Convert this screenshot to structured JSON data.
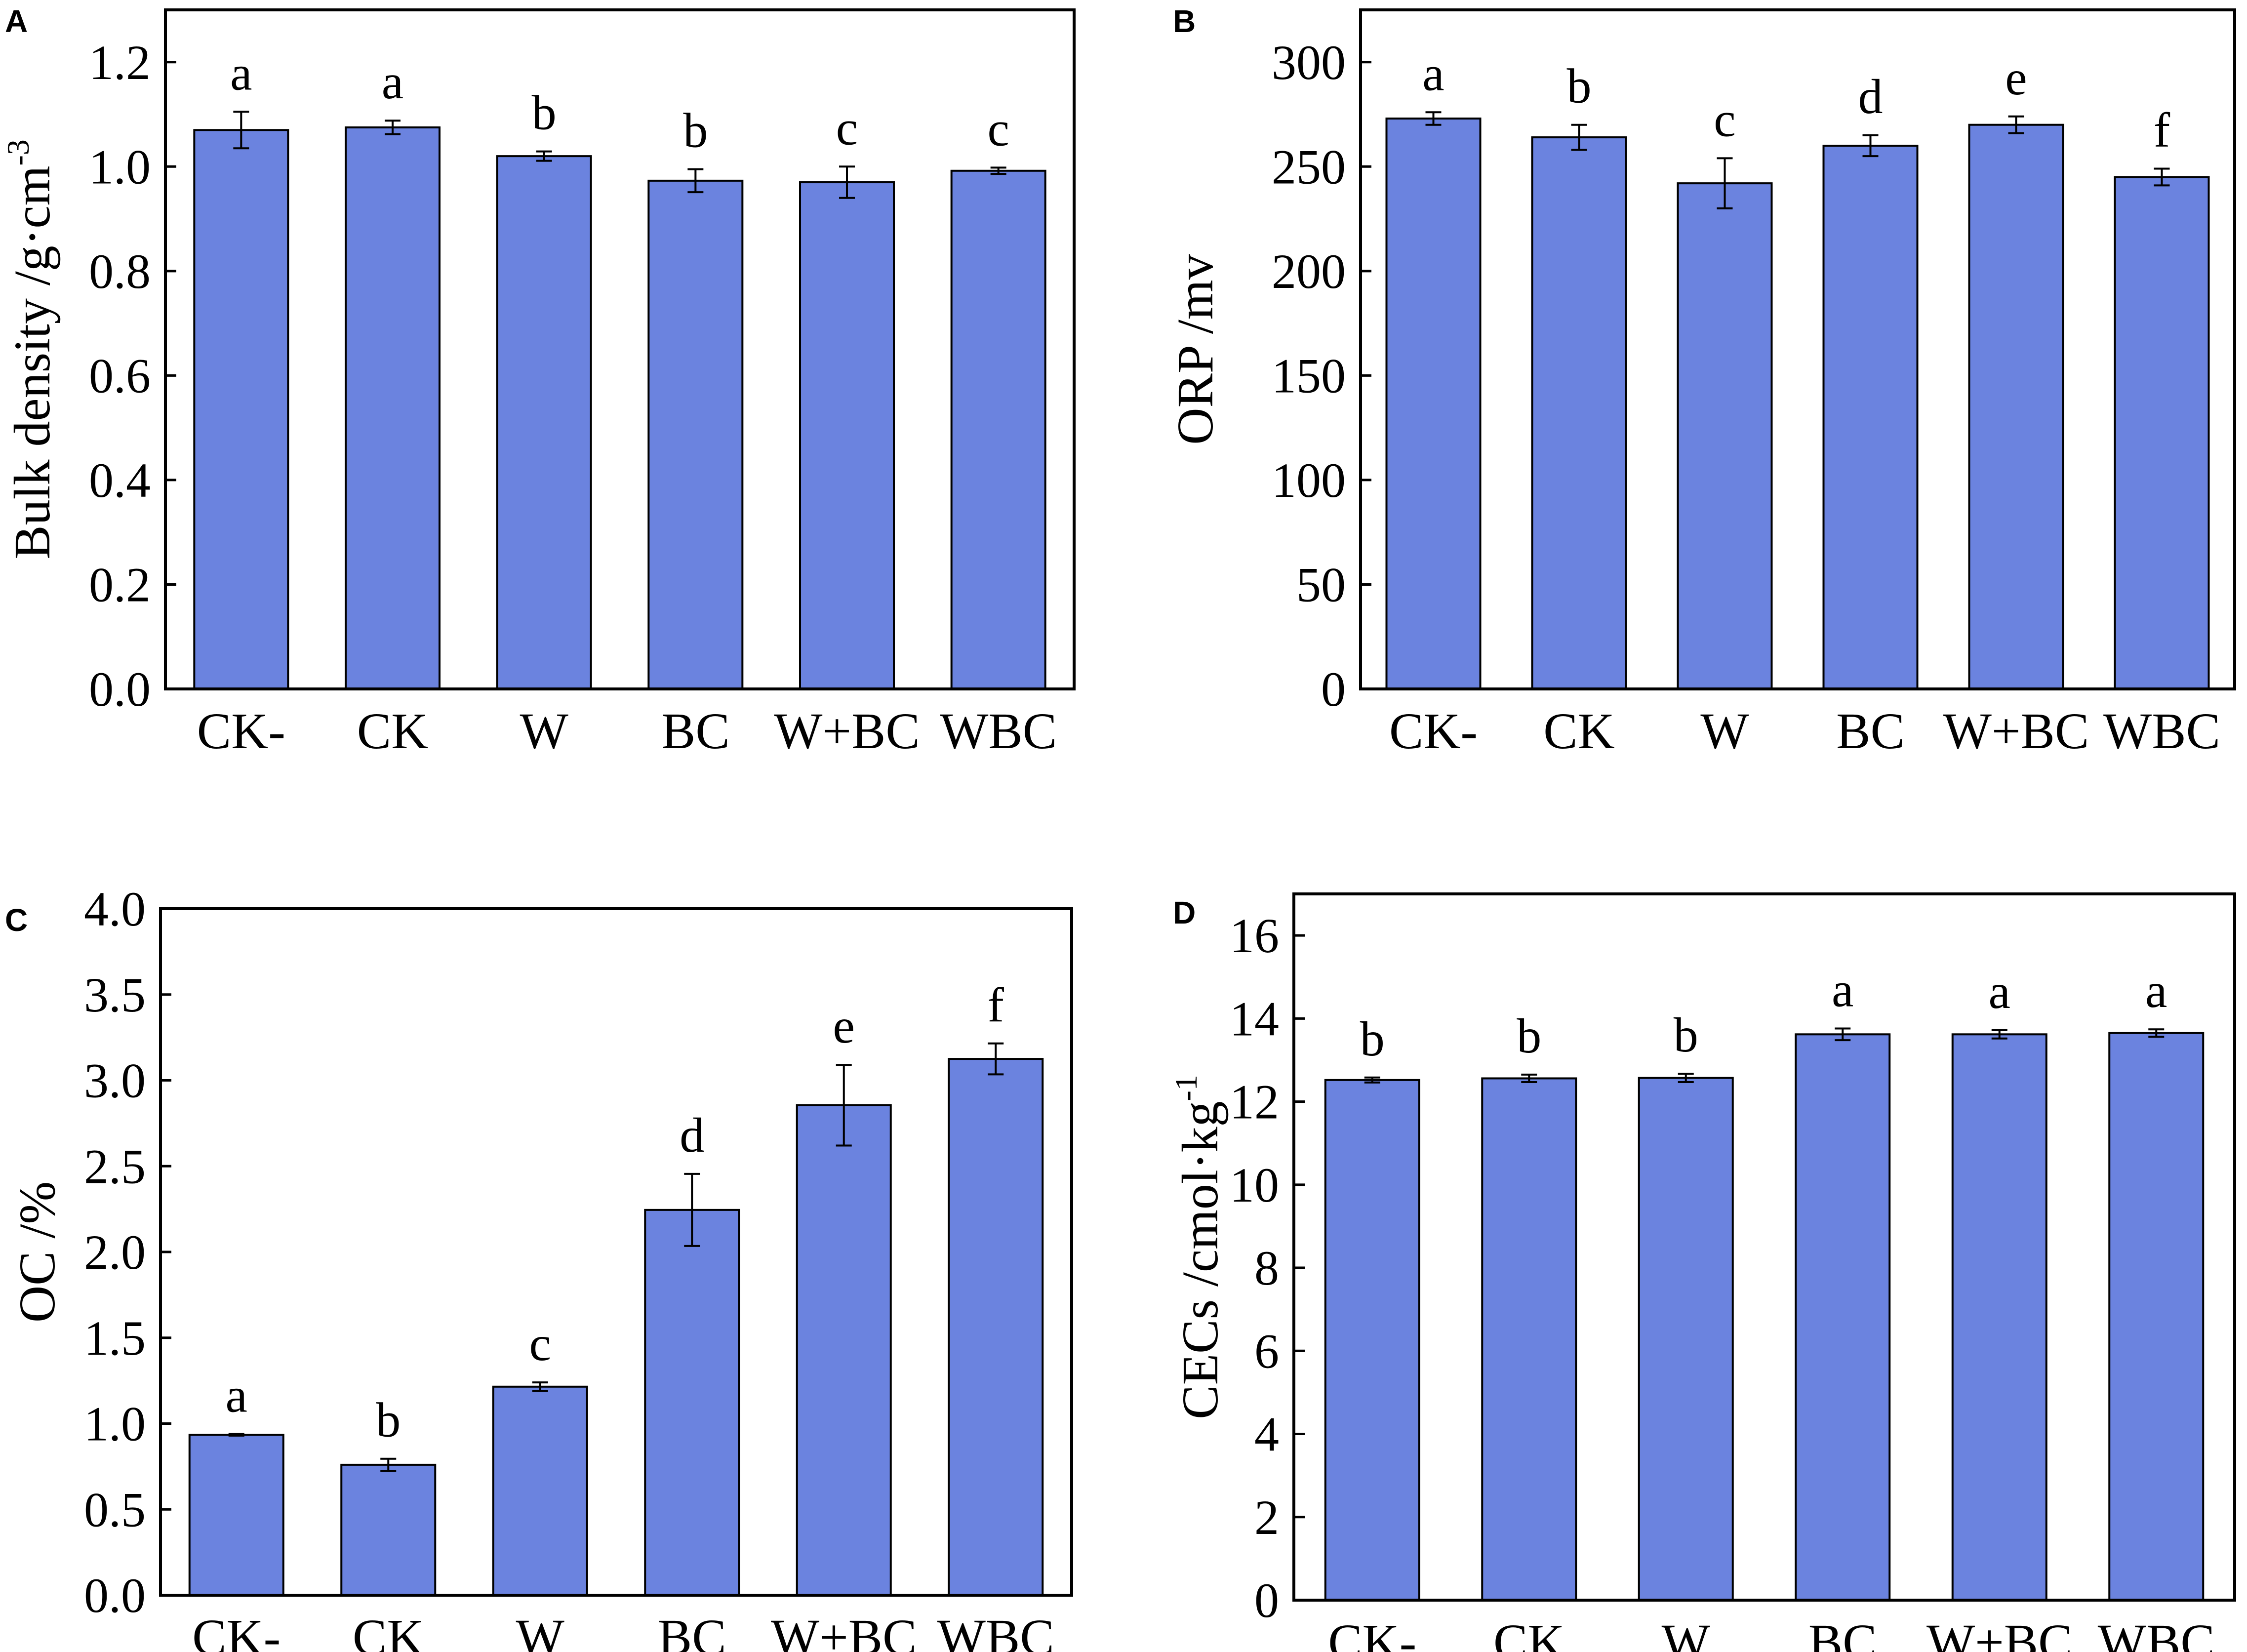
{
  "colors": {
    "bar_fill": "#6b83df",
    "axis": "#000000",
    "background": "#ffffff"
  },
  "chart_data": [
    {
      "panel": "A",
      "type": "bar",
      "categories": [
        "CK-",
        "CK",
        "W",
        "BC",
        "W+BC",
        "WBC"
      ],
      "values": [
        1.07,
        1.075,
        1.02,
        0.973,
        0.97,
        0.992
      ],
      "errors": [
        0.035,
        0.013,
        0.009,
        0.022,
        0.03,
        0.006
      ],
      "significance": [
        "a",
        "a",
        "b",
        "b",
        "c",
        "c"
      ],
      "ylabel": "Bulk density /g·cm",
      "ylabel_sup": "-3",
      "ylim": [
        0,
        1.3
      ],
      "yticks": [
        "0.0",
        "0.2",
        "0.4",
        "0.6",
        "0.8",
        "1.0",
        "1.2"
      ],
      "ytick_values": [
        0,
        0.2,
        0.4,
        0.6,
        0.8,
        1.0,
        1.2
      ]
    },
    {
      "panel": "B",
      "type": "bar",
      "categories": [
        "CK-",
        "CK",
        "W",
        "BC",
        "W+BC",
        "WBC"
      ],
      "values": [
        273,
        264,
        242,
        260,
        270,
        245
      ],
      "errors": [
        3,
        6,
        12,
        5,
        4,
        4
      ],
      "significance": [
        "a",
        "b",
        "c",
        "d",
        "e",
        "f"
      ],
      "ylabel": "ORP /mv",
      "ylabel_sup": "",
      "ylim": [
        0,
        325
      ],
      "yticks": [
        "0",
        "50",
        "100",
        "150",
        "200",
        "250",
        "300"
      ],
      "ytick_values": [
        0,
        50,
        100,
        150,
        200,
        250,
        300
      ]
    },
    {
      "panel": "C",
      "type": "bar",
      "categories": [
        "CK-",
        "CK",
        "W",
        "BC",
        "W+BC",
        "WBC"
      ],
      "values": [
        0.935,
        0.76,
        1.215,
        2.245,
        2.855,
        3.125
      ],
      "errors": [
        0.005,
        0.035,
        0.025,
        0.21,
        0.235,
        0.09
      ],
      "significance": [
        "a",
        "b",
        "c",
        "d",
        "e",
        "f"
      ],
      "ylabel": "OC /%",
      "ylabel_sup": "",
      "ylim": [
        0,
        4.0
      ],
      "yticks": [
        "0.0",
        "0.5",
        "1.0",
        "1.5",
        "2.0",
        "2.5",
        "3.0",
        "3.5",
        "4.0"
      ],
      "ytick_values": [
        0,
        0.5,
        1.0,
        1.5,
        2.0,
        2.5,
        3.0,
        3.5,
        4.0
      ]
    },
    {
      "panel": "D",
      "type": "bar",
      "categories": [
        "CK-",
        "CK",
        "W",
        "BC",
        "W+BC",
        "WBC"
      ],
      "values": [
        12.52,
        12.56,
        12.57,
        13.62,
        13.62,
        13.65
      ],
      "errors": [
        0.06,
        0.09,
        0.1,
        0.14,
        0.1,
        0.09
      ],
      "significance": [
        "b",
        "b",
        "b",
        "a",
        "a",
        "a"
      ],
      "ylabel": "CECs /cmol·kg",
      "ylabel_sup": "-1",
      "ylim": [
        0,
        17
      ],
      "yticks": [
        "0",
        "2",
        "4",
        "6",
        "8",
        "10",
        "12",
        "14",
        "16"
      ],
      "ytick_values": [
        0,
        2,
        4,
        6,
        8,
        10,
        12,
        14,
        16
      ]
    }
  ]
}
